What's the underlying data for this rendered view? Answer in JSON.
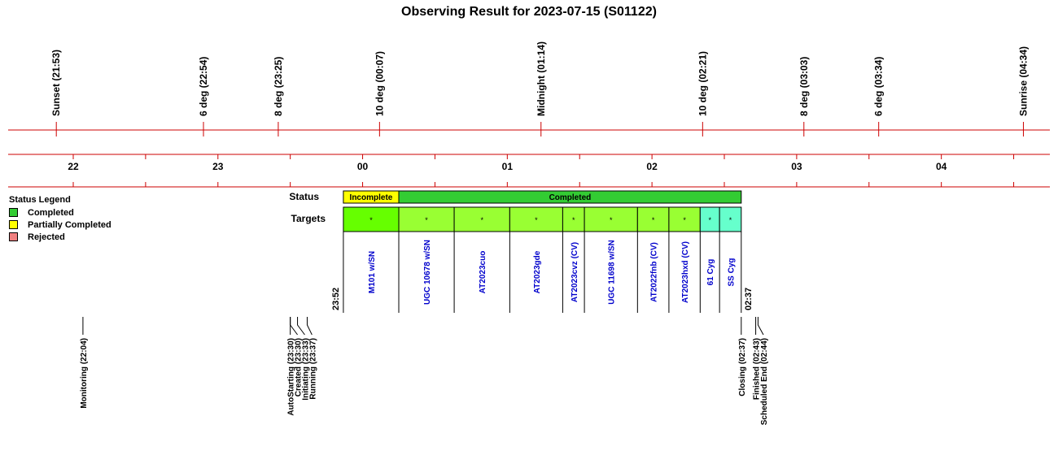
{
  "title": "Observing Result for 2023-07-15 (S01122)",
  "colors": {
    "axis": "#cc0000",
    "completed": "#33cc33",
    "incomplete": "#ffff00",
    "rejected": "#f08080",
    "target_done": "#99ff33",
    "target_first": "#66ff00",
    "target_alt": "#66ffcc",
    "target_text": "#0000cc"
  },
  "legend": {
    "title": "Status Legend",
    "items": [
      {
        "label": "Completed",
        "color": "#33cc33"
      },
      {
        "label": "Partially Completed",
        "color": "#ffff00"
      },
      {
        "label": "Rejected",
        "color": "#f08080"
      }
    ]
  },
  "chart_data": {
    "type": "timeline",
    "title": "Observing Result for 2023-07-15 (S01122)",
    "x_range_hours": [
      21.55,
      28.75
    ],
    "events_top": [
      {
        "label": "Sunset (21:53)",
        "t": 21.883
      },
      {
        "label": "6 deg (22:54)",
        "t": 22.9
      },
      {
        "label": "8 deg (23:25)",
        "t": 23.417
      },
      {
        "label": "10 deg (00:07)",
        "t": 24.117
      },
      {
        "label": "Midnight (01:14)",
        "t": 25.233
      },
      {
        "label": "10 deg (02:21)",
        "t": 26.35
      },
      {
        "label": "8 deg (03:03)",
        "t": 27.05
      },
      {
        "label": "6 deg (03:34)",
        "t": 27.567
      },
      {
        "label": "Sunrise (04:34)",
        "t": 28.567
      }
    ],
    "hour_labels": [
      {
        "label": "22",
        "t": 22
      },
      {
        "label": "23",
        "t": 23
      },
      {
        "label": "00",
        "t": 24
      },
      {
        "label": "01",
        "t": 25
      },
      {
        "label": "02",
        "t": 26
      },
      {
        "label": "03",
        "t": 27
      },
      {
        "label": "04",
        "t": 28
      }
    ],
    "status_label": "Status",
    "status_bars": [
      {
        "label": "Incomplete",
        "start": 23.867,
        "end": 24.25,
        "status": "incomplete"
      },
      {
        "label": "Completed",
        "start": 24.25,
        "end": 26.617,
        "status": "completed"
      }
    ],
    "targets_label": "Targets",
    "start_time": "23:52",
    "end_time": "02:37",
    "targets": [
      {
        "name": "M101 w/SN",
        "start": 23.867,
        "end": 24.25,
        "fill": "first"
      },
      {
        "name": "UGC 10678 w/SN",
        "start": 24.25,
        "end": 24.633,
        "fill": "done"
      },
      {
        "name": "AT2023cuo",
        "start": 24.633,
        "end": 25.017,
        "fill": "done"
      },
      {
        "name": "AT2023gde",
        "start": 25.017,
        "end": 25.383,
        "fill": "done"
      },
      {
        "name": "AT2023cvz (CV)",
        "start": 25.383,
        "end": 25.533,
        "fill": "done"
      },
      {
        "name": "UGC 11698 w/SN",
        "start": 25.533,
        "end": 25.9,
        "fill": "done"
      },
      {
        "name": "AT2022fnb (CV)",
        "start": 25.9,
        "end": 26.117,
        "fill": "done"
      },
      {
        "name": "AT2023hxd (CV)",
        "start": 26.117,
        "end": 26.333,
        "fill": "done"
      },
      {
        "name": "61 Cyg",
        "start": 26.333,
        "end": 26.467,
        "fill": "alt"
      },
      {
        "name": "SS Cyg",
        "start": 26.467,
        "end": 26.617,
        "fill": "alt"
      }
    ],
    "target_marker": "*",
    "events_bottom": [
      {
        "label": "Monitoring (22:04)",
        "t": 22.067,
        "lx": 22.067
      },
      {
        "label": "AutoStarting (23:30)",
        "t": 23.5,
        "lx": 23.5
      },
      {
        "label": "Created (23:30)",
        "t": 23.5,
        "lx": 23.55
      },
      {
        "label": "Initiating (23:33)",
        "t": 23.55,
        "lx": 23.6
      },
      {
        "label": "Running (23:37)",
        "t": 23.617,
        "lx": 23.65
      },
      {
        "label": "Closing (02:37)",
        "t": 26.617,
        "lx": 26.617
      },
      {
        "label": "Finished (02:43)",
        "t": 26.717,
        "lx": 26.717
      },
      {
        "label": "Scheduled End (02:44)",
        "t": 26.733,
        "lx": 26.77
      }
    ]
  }
}
